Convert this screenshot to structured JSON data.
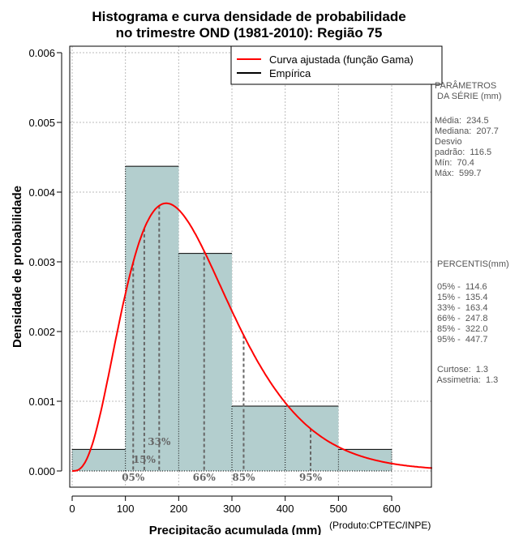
{
  "chart_data": {
    "type": "bar",
    "title": [
      "Histograma e curva densidade de probabilidade",
      "no trimestre OND (1981-2010): Região 75"
    ],
    "xlabel": "Precipitação acumulada (mm)",
    "ylabel": "Densidade de probabilidade",
    "credit": "(Produto:CPTEC/INPE)",
    "xlim": [
      0,
      680
    ],
    "ylim": [
      0,
      0.0061
    ],
    "xticks": [
      "0",
      "100",
      "200",
      "300",
      "400",
      "500",
      "600"
    ],
    "yticks": [
      "0.000",
      "0.001",
      "0.002",
      "0.003",
      "0.004",
      "0.005",
      "0.006"
    ],
    "grid": true,
    "bins": [
      {
        "from": 0,
        "to": 100,
        "density": 0.00031
      },
      {
        "from": 100,
        "to": 200,
        "density": 0.00437
      },
      {
        "from": 200,
        "to": 300,
        "density": 0.00312
      },
      {
        "from": 300,
        "to": 400,
        "density": 0.00093
      },
      {
        "from": 400,
        "to": 500,
        "density": 0.00093
      },
      {
        "from": 500,
        "to": 600,
        "density": 0.00031
      }
    ],
    "fitted_curve": {
      "name": "Curva ajustada (função Gama)",
      "mean": 234.5,
      "sd": 116.5,
      "color": "#ff0000"
    },
    "legend": [
      "Curva ajustada (função Gama)",
      "Empírica"
    ],
    "legend_position": "top-right",
    "percentile_markers": [
      {
        "label": "05%",
        "value": 114.6
      },
      {
        "label": "15%",
        "value": 135.4
      },
      {
        "label": "33%",
        "value": 163.4
      },
      {
        "label": "66%",
        "value": 247.8
      },
      {
        "label": "85%",
        "value": 322.0
      },
      {
        "label": "95%",
        "value": 447.7
      }
    ],
    "bar_color": "#b3cece"
  },
  "side_panel": {
    "params_title": "PARÂMETROS\n DA SÉRIE (mm)",
    "params": "Média:  234.5\nMediana:  207.7\nDesvio\npadrão:  116.5\nMín:  70.4\nMáx:  599.7",
    "percentis_title": " PERCENTIS(mm)",
    "percentis": " 05% -  114.6\n 15% -  135.4\n 33% -  163.4\n 66% -  247.8\n 85% -  322.0\n 95% -  447.7",
    "stats": " Curtose:  1.3\n Assimetria:  1.3"
  }
}
